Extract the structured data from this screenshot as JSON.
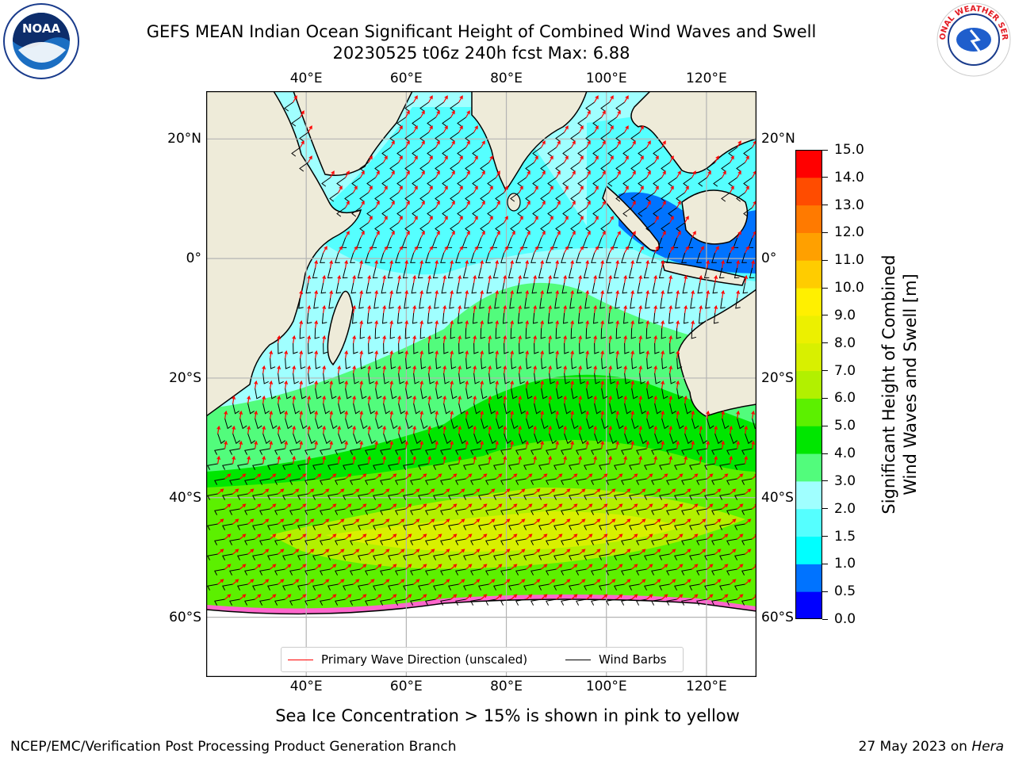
{
  "header": {
    "title_line1": "GEFS MEAN Indian Ocean Significant Height of Combined Wind Waves and Swell",
    "title_line2": "20230525 t06z 240h fcst   Max: 6.88"
  },
  "logos": {
    "left": {
      "name": "NOAA",
      "text": "NOAA",
      "ring_text": "NATIONAL OCEANIC AND ATMOSPHERIC ADMINISTRATION · U.S. DEPARTMENT OF COMMERCE"
    },
    "right": {
      "name": "NWS",
      "ring_text": "NATIONAL WEATHER SERVICE"
    }
  },
  "map": {
    "lon_ticks": [
      "40°E",
      "60°E",
      "80°E",
      "100°E",
      "120°E"
    ],
    "lat_ticks": [
      "20°N",
      "0°",
      "20°S",
      "40°S",
      "60°S"
    ],
    "lon_values": [
      40,
      60,
      80,
      100,
      120
    ],
    "lat_values": [
      20,
      0,
      -20,
      -40,
      -60
    ],
    "extent": {
      "lon_min": 20,
      "lon_max": 130,
      "lat_min": -70,
      "lat_max": 28
    },
    "colors": {
      "land": "#eeebd9",
      "ice": "#ffffff",
      "grid": "#b4b4b4"
    },
    "legend": {
      "wave_label": "Primary Wave Direction (unscaled)",
      "wave_color": "#ff0000",
      "barb_label": "Wind Barbs",
      "barb_color": "#000000"
    }
  },
  "colorbar": {
    "title_line1": "Significant Height of Combined",
    "title_line2": "Wind Waves and Swell [m]",
    "ticks": [
      "0.0",
      "0.5",
      "1.0",
      "1.5",
      "2.0",
      "3.0",
      "4.0",
      "5.0",
      "6.0",
      "7.0",
      "8.0",
      "9.0",
      "10.0",
      "11.0",
      "12.0",
      "13.0",
      "14.0",
      "15.0"
    ],
    "colors": [
      "#0000ff",
      "#0073ff",
      "#00ffff",
      "#55ffff",
      "#a0ffff",
      "#52fc7c",
      "#00e600",
      "#5cf000",
      "#b2f000",
      "#d8f000",
      "#ecf000",
      "#fff000",
      "#ffcc00",
      "#ffa000",
      "#ff7a00",
      "#ff4c00",
      "#ff0000"
    ]
  },
  "subtitle": "Sea Ice Concentration > 15% is shown in pink to yellow",
  "footer": {
    "left": "NCEP/EMC/Verification Post Processing Product Generation Branch",
    "date": "27 May 2023 on ",
    "host": "Hera"
  }
}
